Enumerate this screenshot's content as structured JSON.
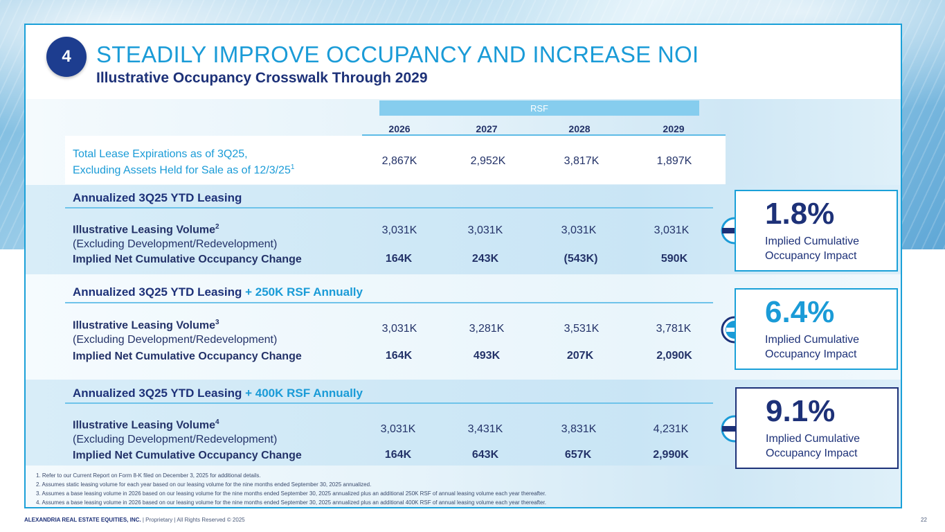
{
  "section_number": "4",
  "title": "STEADILY IMPROVE OCCUPANCY AND INCREASE NOI",
  "subtitle": "Illustrative Occupancy Crosswalk Through 2029",
  "table": {
    "group_header": "RSF",
    "years": [
      "2026",
      "2027",
      "2028",
      "2029"
    ],
    "expirations": {
      "label_line1": "Total Lease Expirations as of 3Q25,",
      "label_line2": "Excluding Assets Held for Sale as of 12/3/25",
      "label_footnote": "1",
      "values": [
        "2,867K",
        "2,952K",
        "3,817K",
        "1,897K"
      ]
    },
    "scenarios": [
      {
        "title": "Annualized 3Q25 YTD Leasing",
        "title_accent": "",
        "volume_label": "Illustrative Leasing Volume",
        "volume_footnote": "2",
        "volume_sublabel": "(Excluding Development/Redevelopment)",
        "volume_values": [
          "3,031K",
          "3,031K",
          "3,031K",
          "3,031K"
        ],
        "change_label": "Implied Net Cumulative Occupancy Change",
        "change_values": [
          "164K",
          "243K",
          "(543K)",
          "590K"
        ],
        "impact_pct": "1.8%",
        "impact_line1": "Implied Cumulative",
        "impact_line2": "Occupancy Impact"
      },
      {
        "title": "Annualized 3Q25 YTD Leasing",
        "title_accent": "+ 250K RSF Annually",
        "volume_label": "Illustrative Leasing Volume",
        "volume_footnote": "3",
        "volume_sublabel": "(Excluding Development/Redevelopment)",
        "volume_values": [
          "3,031K",
          "3,281K",
          "3,531K",
          "3,781K"
        ],
        "change_label": "Implied Net Cumulative Occupancy Change",
        "change_values": [
          "164K",
          "493K",
          "207K",
          "2,090K"
        ],
        "impact_pct": "6.4%",
        "impact_line1": "Implied Cumulative",
        "impact_line2": "Occupancy Impact"
      },
      {
        "title": "Annualized 3Q25 YTD Leasing",
        "title_accent": "+ 400K RSF Annually",
        "volume_label": "Illustrative Leasing Volume",
        "volume_footnote": "4",
        "volume_sublabel": "(Excluding Development/Redevelopment)",
        "volume_values": [
          "3,031K",
          "3,431K",
          "3,831K",
          "4,231K"
        ],
        "change_label": "Implied Net Cumulative Occupancy Change",
        "change_values": [
          "164K",
          "643K",
          "657K",
          "2,990K"
        ],
        "impact_pct": "9.1%",
        "impact_line1": "Implied Cumulative",
        "impact_line2": "Occupancy Impact"
      }
    ]
  },
  "footnotes": [
    "1.   Refer to our Current Report on Form 8-K filed on December 3, 2025 for additional details.",
    "2.   Assumes static leasing volume for each year based on our leasing volume for the nine months ended September 30, 2025 annualized.",
    "3.   Assumes a base leasing volume in 2026 based on our leasing volume for the nine months ended September 30, 2025 annualized plus an additional 250K RSF of annual leasing volume each year thereafter.",
    "4.   Assumes a base leasing volume in 2026 based on our leasing volume for the nine months ended September 30, 2025 annualized plus an additional 400K RSF of annual leasing volume each year thereafter."
  ],
  "footer": {
    "company": "ALEXANDRIA REAL ESTATE EQUITIES, INC.",
    "rights": " | Proprietary | All Rights Reserved © 2025",
    "page_number": "22"
  },
  "colors": {
    "navy": "#1d3178",
    "accent_blue": "#1a9bd7",
    "light_blue": "#86cdee"
  },
  "icons": [
    "arrow-right-circle-icon"
  ]
}
